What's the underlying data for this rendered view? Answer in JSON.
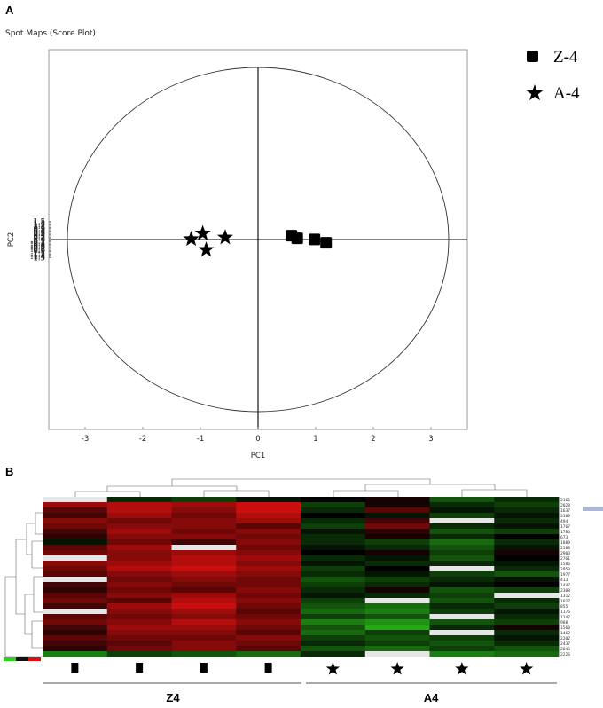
{
  "panels": {
    "a_label": "A",
    "b_label": "B"
  },
  "chart_data": [
    {
      "type": "scatter",
      "title": "Spot Maps (Score Plot)",
      "xlabel": "PC1",
      "ylabel": "PC2",
      "xlim": [
        -3.6,
        3.6
      ],
      "ylim": [
        -1.55,
        1.55
      ],
      "xticks": [
        "-3",
        "-2",
        "-1",
        "0",
        "1",
        "2",
        "3"
      ],
      "yticks": [
        "1.5",
        "1.4",
        "1.3",
        "1.2",
        "1.1",
        "1",
        "0.9",
        "0.8",
        "0.7",
        "0.6",
        "0.5",
        "0.4",
        "0.3",
        "0.2",
        "0.1",
        "0",
        "-0.1",
        "-0.2",
        "-0.3",
        "-0.4",
        "-0.5",
        "-0.6",
        "-0.7",
        "-0.8",
        "-0.9",
        "-1",
        "-1.1",
        "-1.2",
        "-1.3",
        "-1.4",
        "-1.5"
      ],
      "grid": false,
      "legend_position": "top-right",
      "series": [
        {
          "name": "Z-4",
          "marker": "square",
          "color": "#000000",
          "points": [
            [
              0.58,
              0.32
            ],
            [
              0.68,
              0.1
            ],
            [
              0.98,
              0.01
            ],
            [
              1.18,
              -0.27
            ]
          ]
        },
        {
          "name": "A-4",
          "marker": "star",
          "color": "#000000",
          "points": [
            [
              -0.96,
              0.51
            ],
            [
              -0.57,
              0.17
            ],
            [
              -1.16,
              0.04
            ],
            [
              -0.9,
              -0.85
            ]
          ]
        }
      ]
    },
    {
      "type": "heatmap",
      "color_low": "#2fd11f",
      "color_mid": "#000000",
      "color_high": "#e01010",
      "groups": [
        {
          "label": "Z4",
          "marker": "square",
          "columns": 4
        },
        {
          "label": "A4",
          "marker": "star",
          "columns": 4
        }
      ],
      "row_labels": [
        "2166",
        "2028",
        "1637",
        "3109",
        "494",
        "1767",
        "1786",
        "673",
        "1889",
        "2588",
        "2903",
        "2761",
        "1586",
        "2950",
        "1977",
        "413",
        "1447",
        "2308",
        "1312",
        "1027",
        "855",
        "1176",
        "1147",
        "988",
        "1560",
        "1462",
        "2202",
        "2437",
        "2043",
        "2226"
      ],
      "values": [
        [
          null,
          -0.2,
          -0.3,
          -0.1,
          0.0,
          0.1,
          -0.4,
          -0.2
        ],
        [
          0.7,
          0.8,
          0.7,
          0.9,
          -0.3,
          0.1,
          -0.2,
          -0.3
        ],
        [
          0.4,
          0.8,
          0.6,
          0.9,
          -0.2,
          0.4,
          -0.1,
          -0.2
        ],
        [
          0.3,
          0.7,
          0.5,
          0.8,
          0.0,
          -0.1,
          -0.3,
          -0.1
        ],
        [
          0.6,
          0.5,
          0.6,
          0.7,
          -0.2,
          0.3,
          null,
          -0.2
        ],
        [
          0.5,
          0.6,
          0.6,
          0.4,
          -0.3,
          0.5,
          -0.2,
          -0.1
        ],
        [
          0.3,
          0.7,
          0.5,
          0.6,
          -0.1,
          0.2,
          -0.4,
          -0.3
        ],
        [
          0.2,
          0.6,
          0.6,
          0.5,
          -0.2,
          0.1,
          -0.2,
          0.0
        ],
        [
          -0.1,
          0.5,
          0.3,
          0.6,
          -0.2,
          -0.3,
          -0.5,
          -0.2
        ],
        [
          0.4,
          0.7,
          null,
          0.5,
          -0.1,
          -0.2,
          -0.4,
          -0.1
        ],
        [
          0.5,
          0.6,
          0.7,
          0.6,
          0.0,
          0.1,
          -0.3,
          0.1
        ],
        [
          null,
          0.6,
          0.8,
          0.7,
          -0.2,
          -0.1,
          -0.4,
          0.0
        ],
        [
          0.6,
          0.7,
          0.8,
          0.6,
          -0.1,
          -0.2,
          -0.2,
          -0.1
        ],
        [
          0.5,
          0.8,
          0.9,
          0.7,
          -0.3,
          0.0,
          null,
          -0.2
        ],
        [
          0.4,
          0.6,
          0.7,
          0.6,
          -0.2,
          -0.1,
          -0.3,
          -0.4
        ],
        [
          null,
          0.5,
          0.6,
          0.5,
          -0.4,
          -0.3,
          -0.2,
          -0.1
        ],
        [
          0.3,
          0.6,
          0.5,
          0.5,
          -0.3,
          -0.2,
          -0.1,
          0.0
        ],
        [
          0.2,
          0.5,
          0.4,
          0.6,
          -0.2,
          0.1,
          -0.4,
          -0.3
        ],
        [
          0.4,
          0.6,
          0.7,
          0.5,
          -0.1,
          -0.2,
          -0.3,
          null
        ],
        [
          0.5,
          0.4,
          0.8,
          0.6,
          -0.3,
          null,
          -0.4,
          -0.2
        ],
        [
          0.3,
          0.7,
          0.9,
          0.5,
          -0.4,
          -0.5,
          -0.2,
          -0.3
        ],
        [
          null,
          0.6,
          0.7,
          0.4,
          -0.5,
          -0.6,
          -0.3,
          -0.1
        ],
        [
          0.4,
          0.5,
          0.6,
          0.5,
          -0.3,
          -0.4,
          null,
          -0.2
        ],
        [
          0.5,
          0.6,
          0.8,
          0.6,
          -0.6,
          -0.7,
          -0.4,
          -0.3
        ],
        [
          0.3,
          0.7,
          0.7,
          0.5,
          -0.4,
          -0.8,
          -0.2,
          0.1
        ],
        [
          0.2,
          0.6,
          0.6,
          0.4,
          -0.5,
          -0.3,
          null,
          -0.2
        ],
        [
          0.4,
          0.5,
          0.5,
          0.6,
          -0.3,
          -0.4,
          -0.3,
          -0.1
        ],
        [
          0.3,
          0.4,
          0.6,
          0.5,
          -0.2,
          -0.3,
          -0.4,
          -0.2
        ],
        [
          0.2,
          0.5,
          0.6,
          0.4,
          -0.4,
          -0.5,
          -0.3,
          -0.4
        ],
        [
          -0.6,
          -0.3,
          -0.4,
          -0.5,
          -0.2,
          null,
          -0.6,
          -0.5
        ]
      ]
    }
  ]
}
